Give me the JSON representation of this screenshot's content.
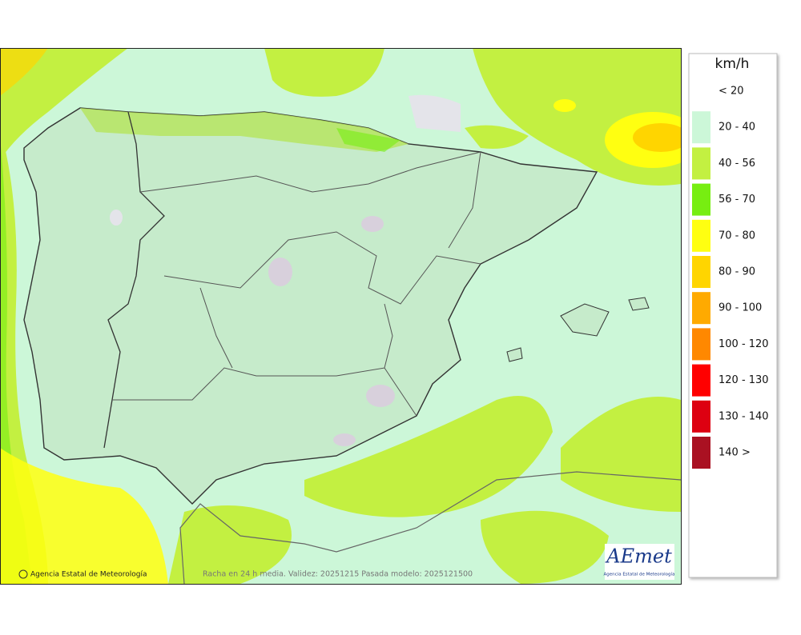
{
  "legend": {
    "title": "km/h",
    "items": [
      {
        "label": "< 20",
        "color": null
      },
      {
        "label": "20 - 40",
        "color": "#ccf7d8"
      },
      {
        "label": "40 - 56",
        "color": "#c3f041"
      },
      {
        "label": "56 - 70",
        "color": "#77ee11"
      },
      {
        "label": "70 - 80",
        "color": "#ffff11"
      },
      {
        "label": "80 - 90",
        "color": "#ffd500"
      },
      {
        "label": "90 - 100",
        "color": "#ffaa00"
      },
      {
        "label": "100 - 120",
        "color": "#ff8800"
      },
      {
        "label": "120 - 130",
        "color": "#ff0000"
      },
      {
        "label": "130 - 140",
        "color": "#dd0011"
      },
      {
        "label": "140 >",
        "color": "#aa1122"
      }
    ]
  },
  "footer": {
    "credit": "Agencia Estatal de Meteorología",
    "caption": "Racha en 24 h media. Validez: 20251215 Pasada modelo: 2025121500"
  },
  "logo": {
    "name": "AEmet",
    "subtitle": "Agencia Estatal de Meteorología"
  }
}
